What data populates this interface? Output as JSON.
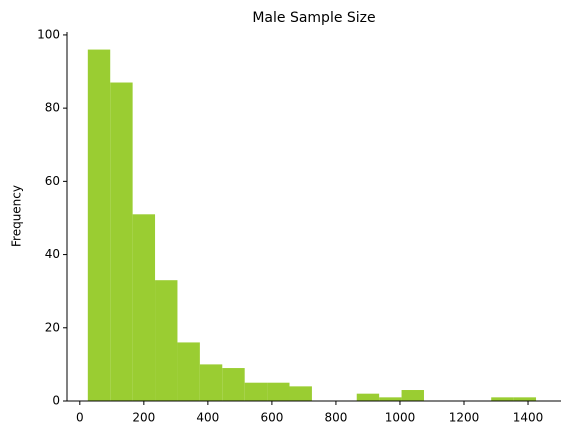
{
  "chart_data": {
    "type": "histogram",
    "title": "Male Sample Size",
    "ylabel": "Frequency",
    "bins": [
      25,
      95,
      165,
      235,
      305,
      375,
      445,
      515,
      585,
      655,
      725,
      795,
      865,
      935,
      1005,
      1075,
      1145,
      1215,
      1285,
      1355,
      1425
    ],
    "values": [
      96,
      87,
      51,
      33,
      16,
      10,
      9,
      5,
      5,
      4,
      0,
      0,
      2,
      1,
      3,
      0,
      0,
      0,
      1,
      1
    ],
    "color": "#9acd32",
    "xlim": [
      -40,
      1503
    ],
    "xticks": [
      0,
      200,
      400,
      600,
      800,
      1000,
      1200,
      1400
    ],
    "ylim": [
      0,
      100.8
    ],
    "yticks": [
      0,
      20,
      40,
      60,
      80,
      100
    ],
    "grid": false
  }
}
